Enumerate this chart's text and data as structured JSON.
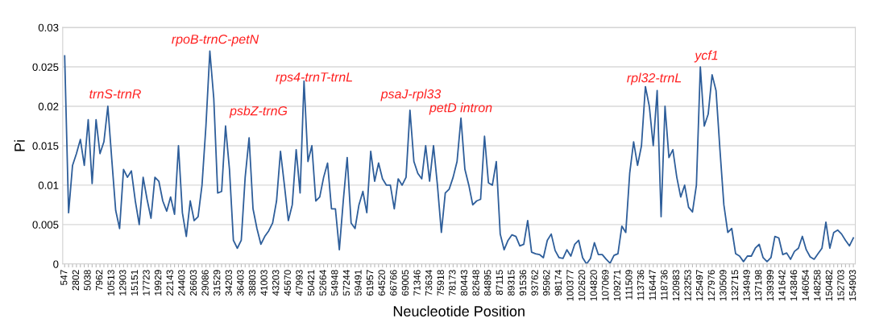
{
  "chart_data": {
    "type": "line",
    "ylabel": "Pi",
    "xlabel": "Neucleotide Position",
    "categories": [
      "547",
      null,
      null,
      "2802",
      null,
      null,
      "5038",
      null,
      null,
      "7962",
      null,
      null,
      "10513",
      null,
      null,
      "12903",
      null,
      null,
      "15151",
      null,
      null,
      "17723",
      null,
      null,
      "19929",
      null,
      null,
      "22143",
      null,
      null,
      "24403",
      null,
      null,
      "26603",
      null,
      null,
      "29086",
      null,
      null,
      "31529",
      null,
      null,
      "34203",
      null,
      null,
      "36403",
      null,
      null,
      "38803",
      null,
      null,
      "41003",
      null,
      null,
      "43203",
      null,
      null,
      "45670",
      null,
      null,
      "47993",
      null,
      null,
      "50421",
      null,
      null,
      "52664",
      null,
      null,
      "54948",
      null,
      null,
      "57244",
      null,
      null,
      "59491",
      null,
      null,
      "61957",
      null,
      null,
      "64520",
      null,
      null,
      "66766",
      null,
      null,
      "69005",
      null,
      null,
      "71346",
      null,
      null,
      "73634",
      null,
      null,
      "75918",
      null,
      null,
      "78173",
      null,
      null,
      "80443",
      null,
      null,
      "82648",
      null,
      null,
      "84895",
      null,
      null,
      "87115",
      null,
      null,
      "89315",
      null,
      null,
      "91536",
      null,
      null,
      "93762",
      null,
      null,
      "95962",
      null,
      null,
      "98174",
      null,
      null,
      "100377",
      null,
      null,
      "102620",
      null,
      null,
      "104820",
      null,
      null,
      "107069",
      null,
      null,
      "109271",
      null,
      null,
      "111509",
      null,
      null,
      "113736",
      null,
      null,
      "116447",
      null,
      null,
      "118736",
      null,
      null,
      "120983",
      null,
      null,
      "123253",
      null,
      null,
      "125497",
      null,
      null,
      "127976",
      null,
      null,
      "130509",
      null,
      null,
      "132715",
      null,
      null,
      "134949",
      null,
      null,
      "137198",
      null,
      null,
      "139399",
      null,
      null,
      "141642",
      null,
      null,
      "143846",
      null,
      null,
      "146054",
      null,
      null,
      "148258",
      null,
      null,
      "150482",
      null,
      null,
      "152703",
      null,
      null,
      "154903"
    ],
    "series": [
      {
        "color": "#2e5e9a",
        "values": [
          0.0264,
          0.0065,
          0.0125,
          0.014,
          0.0158,
          0.0125,
          0.0183,
          0.0102,
          0.0183,
          0.014,
          0.0155,
          0.02,
          0.0133,
          0.0068,
          0.0045,
          0.012,
          0.011,
          0.0118,
          0.008,
          0.005,
          0.011,
          0.0082,
          0.0058,
          0.011,
          0.0105,
          0.008,
          0.0067,
          0.0085,
          0.0063,
          0.015,
          0.0065,
          0.0035,
          0.008,
          0.0055,
          0.006,
          0.01,
          0.0175,
          0.027,
          0.021,
          0.009,
          0.0092,
          0.0175,
          0.012,
          0.003,
          0.002,
          0.003,
          0.011,
          0.016,
          0.007,
          0.0045,
          0.0025,
          0.0035,
          0.0042,
          0.0052,
          0.008,
          0.0143,
          0.01,
          0.0055,
          0.0075,
          0.0145,
          0.009,
          0.0232,
          0.013,
          0.015,
          0.008,
          0.0085,
          0.011,
          0.0128,
          0.007,
          0.007,
          0.0018,
          0.008,
          0.0135,
          0.0052,
          0.0045,
          0.0075,
          0.0092,
          0.0065,
          0.0143,
          0.0105,
          0.0128,
          0.0108,
          0.01,
          0.01,
          0.007,
          0.0108,
          0.01,
          0.011,
          0.0195,
          0.013,
          0.0115,
          0.0108,
          0.015,
          0.0105,
          0.015,
          0.01,
          0.004,
          0.009,
          0.0095,
          0.011,
          0.013,
          0.0185,
          0.012,
          0.01,
          0.0075,
          0.008,
          0.0082,
          0.0162,
          0.0103,
          0.01,
          0.013,
          0.0038,
          0.0018,
          0.003,
          0.0037,
          0.0035,
          0.0023,
          0.0025,
          0.0055,
          0.0015,
          0.0013,
          0.0012,
          0.0008,
          0.003,
          0.0038,
          0.0017,
          0.0008,
          0.0007,
          0.0018,
          0.001,
          0.0025,
          0.003,
          0.0008,
          0.0,
          0.0007,
          0.0027,
          0.0012,
          0.0012,
          0.0006,
          0.0001,
          0.0011,
          0.0013,
          0.0048,
          0.004,
          0.0115,
          0.0155,
          0.0125,
          0.015,
          0.0225,
          0.02,
          0.015,
          0.022,
          0.006,
          0.02,
          0.0135,
          0.0145,
          0.011,
          0.0085,
          0.01,
          0.0072,
          0.0066,
          0.01,
          0.025,
          0.0175,
          0.019,
          0.024,
          0.022,
          0.0145,
          0.0075,
          0.004,
          0.0045,
          0.0013,
          0.001,
          0.0003,
          0.001,
          0.001,
          0.002,
          0.0025,
          0.0008,
          0.0003,
          0.0008,
          0.0035,
          0.0033,
          0.0012,
          0.0014,
          0.0006,
          0.0016,
          0.002,
          0.0035,
          0.0018,
          0.0009,
          0.0006,
          0.0013,
          0.002,
          0.0053,
          0.002,
          0.004,
          0.0043,
          0.0038,
          0.003,
          0.0023,
          0.0033
        ]
      }
    ],
    "ylim": [
      0,
      0.03
    ],
    "yticks": [
      0,
      0.005,
      0.01,
      0.015,
      0.02,
      0.025,
      0.03
    ],
    "grid": "y",
    "marker": "none",
    "line_style": "solid",
    "annotations": [
      "trnS-trnR",
      "rpoB-trnC-petN",
      "psbZ-trnG",
      "rps4-trnT-trnL",
      "psaJ-rpl33",
      "petD intron",
      "rpl32-trnL",
      "ycf1"
    ]
  }
}
